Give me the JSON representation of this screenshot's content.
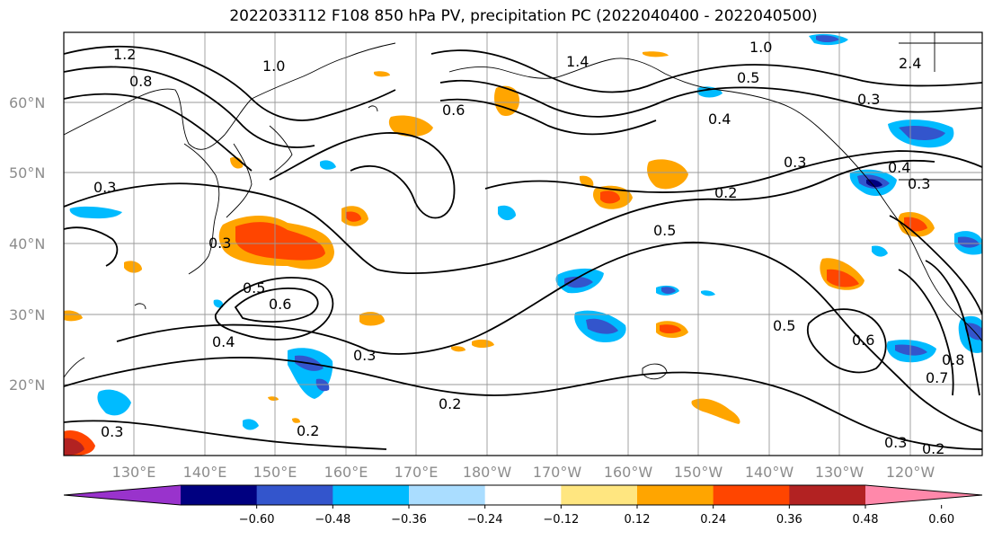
{
  "title": "2022033112 F108 850 hPa PV, precipitation PC (2022040400 - 2022040500)",
  "map": {
    "lat_labels": [
      "60°N",
      "50°N",
      "40°N",
      "30°N",
      "20°N"
    ],
    "lon_labels": [
      "130°E",
      "140°E",
      "150°E",
      "160°E",
      "170°E",
      "180°W",
      "170°W",
      "160°W",
      "150°W",
      "140°W",
      "130°W",
      "120°W"
    ],
    "contour_labels": [
      "1.2",
      "0.8",
      "1.0",
      "1.4",
      "0.6",
      "1.0",
      "0.5",
      "0.3",
      "0.4",
      "2.4",
      "0.3",
      "0.3",
      "0.2",
      "0.5",
      "0.3",
      "0.5",
      "0.6",
      "0.4",
      "0.3",
      "0.2",
      "0.2",
      "0.5",
      "0.6",
      "0.3",
      "0.2",
      "0.3",
      "0.4",
      "0.3",
      "0.8",
      "0.7"
    ]
  },
  "colorbar": {
    "colors": [
      "#9933cc",
      "#000080",
      "#3355cc",
      "#00bbff",
      "#aaddff",
      "#ffffff",
      "#ffe680",
      "#ffa500",
      "#ff4500",
      "#b22222",
      "#ff88aa"
    ],
    "tick_labels": [
      "−0.60",
      "−0.48",
      "−0.36",
      "−0.24",
      "−0.12",
      "0.12",
      "0.24",
      "0.36",
      "0.48",
      "0.60"
    ]
  }
}
